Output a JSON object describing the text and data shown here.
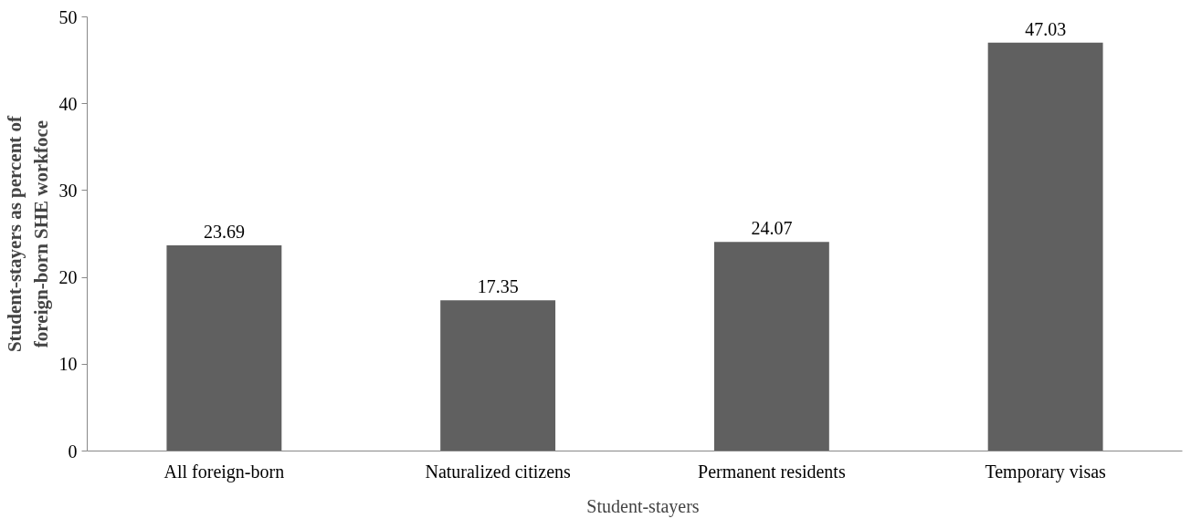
{
  "chart_data": {
    "type": "bar",
    "ylabel": "Student-stayers as percent of\nforeign-born SHE workfoce",
    "categories": [
      "All foreign-born",
      "Naturalized citizens",
      "Permanent residents",
      "Temporary visas"
    ],
    "series": [
      {
        "name": "Student-stayers",
        "color": "#606060",
        "values": [
          23.69,
          17.35,
          24.07,
          47.03
        ]
      }
    ],
    "ylim": [
      0,
      50
    ],
    "yticks": [
      0,
      10,
      20,
      30,
      40,
      50
    ],
    "data_labels": true,
    "grid": false,
    "legend": "bottom"
  }
}
